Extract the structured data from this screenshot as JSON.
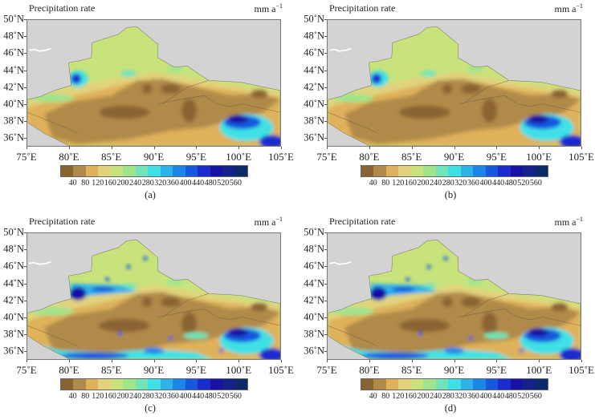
{
  "figure": {
    "title": "Precipitation rate",
    "unit": "mm a",
    "unit_exp": "−1",
    "lat_labels": [
      "50˚N",
      "48˚N",
      "46˚N",
      "44˚N",
      "42˚N",
      "40˚N",
      "38˚N",
      "36˚N"
    ],
    "lat_values": [
      50,
      48,
      46,
      44,
      42,
      40,
      38,
      36
    ],
    "lon_labels": [
      "75˚E",
      "80˚E",
      "85˚E",
      "90˚E",
      "95˚E",
      "100˚E",
      "105˚E"
    ],
    "lon_values": [
      75,
      80,
      85,
      90,
      95,
      100,
      105
    ],
    "lat_range": [
      35,
      50
    ],
    "lon_range": [
      75,
      105
    ],
    "colorbar": {
      "levels": [
        "40",
        "80",
        "120",
        "160",
        "200",
        "240",
        "280",
        "320",
        "360",
        "400",
        "440",
        "480",
        "520",
        "560"
      ],
      "colors": [
        "#8a6430",
        "#b08a4a",
        "#dfb15a",
        "#e2d27c",
        "#c8e37c",
        "#a0e48c",
        "#72e4ba",
        "#3fe1e6",
        "#2db2ea",
        "#1b86ea",
        "#1659de",
        "#1b2ccf",
        "#1711a6",
        "#152289",
        "#0d2a68"
      ]
    },
    "panels": [
      {
        "label": "(a)",
        "variant": "smooth"
      },
      {
        "label": "(b)",
        "variant": "smooth"
      },
      {
        "label": "(c)",
        "variant": "detailed"
      },
      {
        "label": "(d)",
        "variant": "detailed"
      }
    ]
  }
}
